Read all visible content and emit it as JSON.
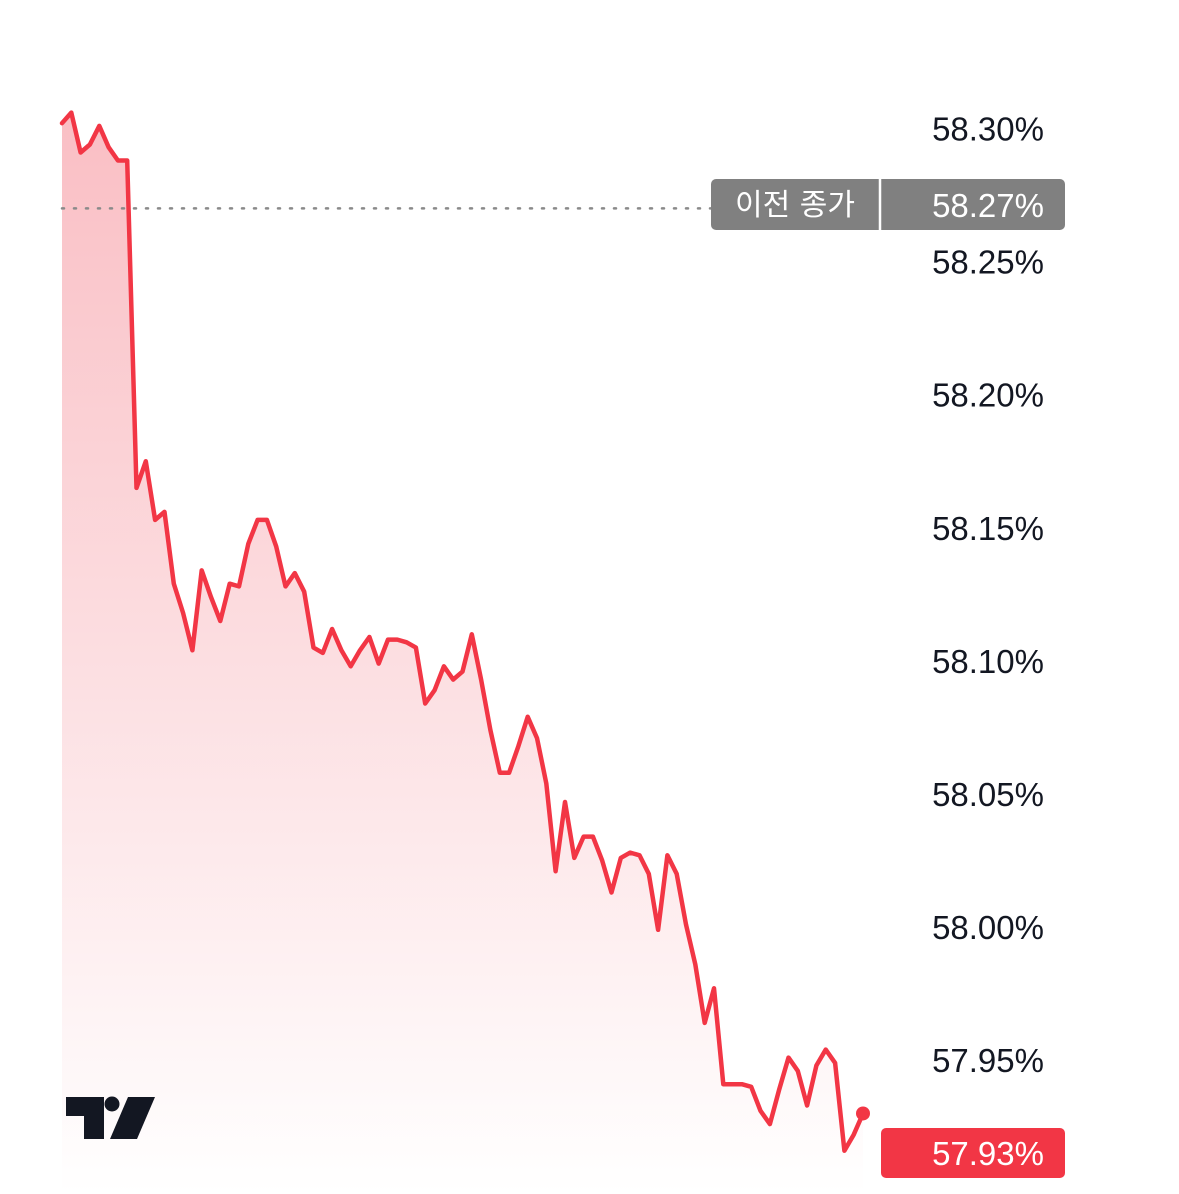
{
  "chart_data": {
    "type": "area",
    "ylim": [
      57.905,
      58.322
    ],
    "y_ticks": [
      "58.30%",
      "58.25%",
      "58.20%",
      "58.15%",
      "58.10%",
      "58.05%",
      "58.00%",
      "57.95%"
    ],
    "y_tick_values": [
      58.3,
      58.25,
      58.2,
      58.15,
      58.1,
      58.05,
      58.0,
      57.95
    ],
    "previous_close": {
      "label": "이전 종가",
      "value": 58.27,
      "value_label": "58.27%"
    },
    "last_price": {
      "value": 57.93,
      "value_label": "57.93%"
    },
    "series": [
      {
        "values": [
          58.302,
          58.306,
          58.291,
          58.294,
          58.301,
          58.293,
          58.288,
          58.288,
          58.165,
          58.175,
          58.153,
          58.156,
          58.129,
          58.118,
          58.104,
          58.134,
          58.124,
          58.115,
          58.129,
          58.128,
          58.144,
          58.153,
          58.153,
          58.143,
          58.128,
          58.133,
          58.126,
          58.105,
          58.103,
          58.112,
          58.104,
          58.098,
          58.104,
          58.109,
          58.099,
          58.108,
          58.108,
          58.107,
          58.105,
          58.084,
          58.089,
          58.098,
          58.093,
          58.096,
          58.11,
          58.093,
          58.074,
          58.058,
          58.058,
          58.068,
          58.079,
          58.071,
          58.054,
          58.021,
          58.047,
          58.026,
          58.034,
          58.034,
          58.025,
          58.013,
          58.026,
          58.028,
          58.027,
          58.02,
          57.999,
          58.027,
          58.02,
          58.001,
          57.986,
          57.964,
          57.977,
          57.941,
          57.941,
          57.941,
          57.94,
          57.931,
          57.926,
          57.939,
          57.951,
          57.946,
          57.933,
          57.948,
          57.954,
          57.949,
          57.916,
          57.922,
          57.93
        ]
      }
    ],
    "colors": {
      "line": "#F23645",
      "fill_top": "#F9BBC1",
      "fill_bottom": "#FFFFFF",
      "prev_close_badge": "#808080",
      "last_price_badge": "#F23645",
      "dotted_line": "#8A8A8A",
      "tick_text": "#131722"
    },
    "logo": "tradingview-logo"
  }
}
